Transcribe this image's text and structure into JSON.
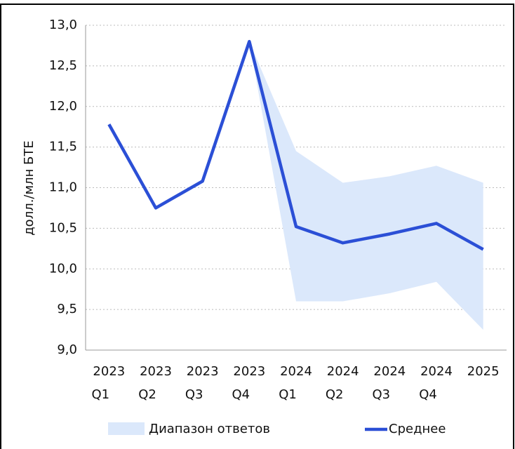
{
  "chart_data": {
    "type": "line",
    "y_label": "долл./млн БТЕ",
    "categories": [
      [
        "2023",
        "Q1"
      ],
      [
        "2023",
        "Q2"
      ],
      [
        "2023",
        "Q3"
      ],
      [
        "2023",
        "Q4"
      ],
      [
        "2024",
        "Q1"
      ],
      [
        "2024",
        "Q2"
      ],
      [
        "2024",
        "Q3"
      ],
      [
        "2024",
        "Q4"
      ],
      [
        "2025"
      ]
    ],
    "series": [
      {
        "name": "Среднее",
        "color": "#2b4fd6",
        "values": [
          11.78,
          10.75,
          11.08,
          12.8,
          10.52,
          10.32,
          10.43,
          10.56,
          10.24
        ]
      }
    ],
    "band": {
      "name": "Диапазон ответов",
      "color": "#dbe8fb",
      "low": [
        null,
        null,
        null,
        12.8,
        9.6,
        9.6,
        9.7,
        9.84,
        9.25
      ],
      "high": [
        null,
        null,
        null,
        12.8,
        11.45,
        11.06,
        11.14,
        11.27,
        11.06
      ]
    },
    "ylim": [
      9,
      13
    ],
    "yticks": [
      {
        "value": 9,
        "label": "9,0"
      },
      {
        "value": 9.5,
        "label": "9,5"
      },
      {
        "value": 10,
        "label": "10,0"
      },
      {
        "value": 10.5,
        "label": "10,5"
      },
      {
        "value": 11,
        "label": "11,0"
      },
      {
        "value": 11.5,
        "label": "11,5"
      },
      {
        "value": 12,
        "label": "12,0"
      },
      {
        "value": 12.5,
        "label": "12,5"
      },
      {
        "value": 13,
        "label": "13,0"
      }
    ],
    "grid": true
  }
}
